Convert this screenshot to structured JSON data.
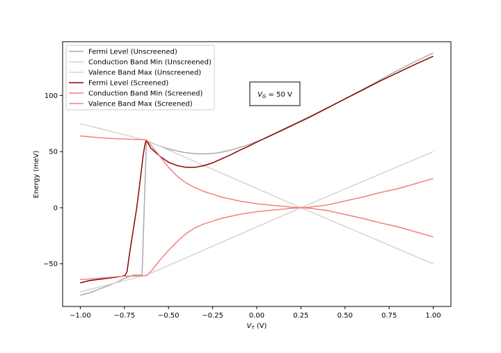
{
  "chart_data": {
    "type": "line",
    "title": "",
    "xlabel_main": "V",
    "xlabel_sub": "T",
    "xlabel_unit": " (V)",
    "ylabel": "Energy (meV)",
    "xlim": [
      -1.1,
      1.1
    ],
    "ylim": [
      -88,
      148
    ],
    "xticks": [
      -1.0,
      -0.75,
      -0.5,
      -0.25,
      0.0,
      0.25,
      0.5,
      0.75,
      1.0
    ],
    "xtick_labels": [
      "−1.00",
      "−0.75",
      "−0.50",
      "−0.25",
      "0.00",
      "0.25",
      "0.50",
      "0.75",
      "1.00"
    ],
    "yticks": [
      -50,
      0,
      50,
      100
    ],
    "ytick_labels": [
      "−50",
      "0",
      "50",
      "100"
    ],
    "grid": false,
    "legend_position": "top-left",
    "annotation": {
      "main": "V",
      "sub": "G",
      "rest": " = 50 V"
    },
    "series": [
      {
        "name": "Fermi Level (Unscreened)",
        "color": "#aaaaaa",
        "x": [
          -1.0,
          -0.95,
          -0.9,
          -0.85,
          -0.8,
          -0.75,
          -0.7,
          -0.65,
          -0.625,
          -0.6,
          -0.55,
          -0.5,
          -0.45,
          -0.4,
          -0.35,
          -0.3,
          -0.25,
          -0.2,
          -0.15,
          -0.1,
          -0.05,
          0.0,
          0.05,
          0.1,
          0.2,
          0.3,
          0.4,
          0.5,
          0.6,
          0.7,
          0.8,
          0.9,
          1.0
        ],
        "y": [
          -78,
          -76,
          -73,
          -70,
          -67,
          -63,
          -60,
          -60,
          60,
          58,
          55,
          52.5,
          50.5,
          49,
          48.2,
          48,
          48.3,
          49.5,
          51.3,
          53.5,
          56,
          59,
          62,
          65.5,
          73,
          80.5,
          88.5,
          97,
          105.5,
          114,
          122.5,
          130.5,
          138
        ]
      },
      {
        "name": "Conduction Band Min (Unscreened)",
        "color": "#d4d4d4",
        "x": [
          -1.0,
          -0.625,
          -0.625,
          0.25,
          1.0
        ],
        "y": [
          75,
          60,
          60,
          0,
          50
        ]
      },
      {
        "name": "Valence Band Max (Unscreened)",
        "color": "#d4d4d4",
        "x": [
          -1.0,
          -0.625,
          0.25,
          1.0
        ],
        "y": [
          -75,
          -60,
          0,
          -50
        ]
      },
      {
        "name": "Fermi Level (Screened)",
        "color": "#8b0000",
        "x": [
          -1.0,
          -0.95,
          -0.9,
          -0.85,
          -0.8,
          -0.76,
          -0.745,
          -0.735,
          -0.72,
          -0.7,
          -0.68,
          -0.66,
          -0.645,
          -0.635,
          -0.63,
          -0.625,
          -0.6,
          -0.55,
          -0.5,
          -0.45,
          -0.4,
          -0.35,
          -0.3,
          -0.25,
          -0.2,
          -0.15,
          -0.1,
          -0.05,
          0.0,
          0.1,
          0.2,
          0.3,
          0.4,
          0.5,
          0.6,
          0.7,
          0.8,
          0.9,
          1.0
        ],
        "y": [
          -67,
          -65,
          -64,
          -63,
          -62,
          -61,
          -60,
          -57,
          -40,
          -20,
          0,
          25,
          45,
          55,
          58.5,
          60,
          53,
          46,
          40.5,
          37.5,
          36,
          36,
          37.5,
          40,
          43.5,
          47,
          51,
          54.5,
          58.5,
          66,
          73.5,
          81,
          89,
          97,
          105,
          113,
          120.5,
          128,
          135
        ]
      },
      {
        "name": "Conduction Band Min (Screened)",
        "color": "#f08080",
        "x": [
          -1.0,
          -0.9,
          -0.8,
          -0.7,
          -0.625,
          -0.6,
          -0.55,
          -0.5,
          -0.45,
          -0.4,
          -0.35,
          -0.3,
          -0.25,
          -0.2,
          -0.1,
          0.0,
          0.1,
          0.2,
          0.25,
          0.3,
          0.4,
          0.5,
          0.6,
          0.7,
          0.8,
          0.9,
          1.0
        ],
        "y": [
          64,
          62.5,
          61.5,
          61,
          60.5,
          56,
          46,
          36,
          28,
          22,
          18,
          14.5,
          12,
          9.5,
          6,
          3.5,
          2,
          0.5,
          0,
          0.5,
          2.5,
          6,
          9.5,
          13.5,
          17,
          21.5,
          26
        ]
      },
      {
        "name": "Valence Band Max (Screened)",
        "color": "#f08080",
        "x": [
          -1.0,
          -0.9,
          -0.8,
          -0.75,
          -0.7,
          -0.625,
          -0.6,
          -0.55,
          -0.5,
          -0.45,
          -0.4,
          -0.35,
          -0.3,
          -0.25,
          -0.2,
          -0.1,
          0.0,
          0.1,
          0.2,
          0.25,
          0.3,
          0.4,
          0.5,
          0.6,
          0.7,
          0.8,
          0.9,
          1.0
        ],
        "y": [
          -64,
          -63,
          -61.5,
          -61,
          -61,
          -60.5,
          -57,
          -47,
          -38,
          -30,
          -23,
          -18,
          -14.5,
          -12,
          -9.5,
          -6,
          -3.5,
          -2,
          -0.5,
          0,
          -0.5,
          -2.5,
          -6,
          -9.5,
          -13.5,
          -17,
          -21.5,
          -26
        ]
      }
    ]
  }
}
